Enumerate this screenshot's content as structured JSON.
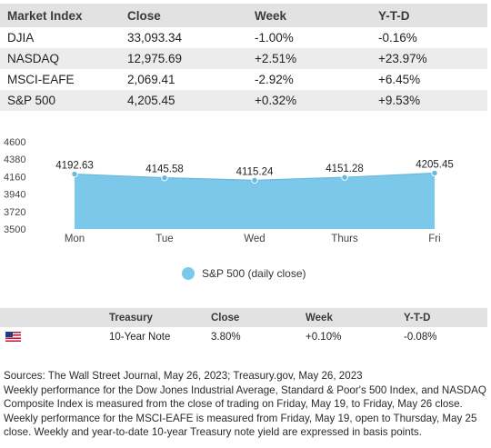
{
  "market_table": {
    "headers": [
      "Market Index",
      "Close",
      "Week",
      "Y-T-D"
    ],
    "rows": [
      [
        "DJIA",
        "33,093.34",
        "-1.00%",
        "-0.16%"
      ],
      [
        "NASDAQ",
        "12,975.69",
        "+2.51%",
        "+23.97%"
      ],
      [
        "MSCI-EAFE",
        "2,069.41",
        "-2.92%",
        "+6.45%"
      ],
      [
        "S&P 500",
        "4,205.45",
        "+0.32%",
        "+9.53%"
      ]
    ]
  },
  "chart_data": {
    "type": "area",
    "categories": [
      "Mon",
      "Tue",
      "Wed",
      "Thurs",
      "Fri"
    ],
    "series": [
      {
        "name": "S&P 500 (daily close)",
        "values": [
          4192.63,
          4145.58,
          4115.24,
          4151.28,
          4205.45
        ]
      }
    ],
    "data_labels": [
      "4192.63",
      "4145.58",
      "4115.24",
      "4151.28",
      "4205.45"
    ],
    "ylim": [
      3500,
      4600
    ],
    "yticks": [
      4600,
      4380,
      4160,
      3940,
      3720,
      3500
    ],
    "grid": false,
    "legend_position": "bottom",
    "colors": {
      "fill": "#7cc8ea",
      "line": "#6ab8dc",
      "marker": "#6ab8dc"
    }
  },
  "legend": {
    "label": "S&P 500 (daily close)"
  },
  "treasury_table": {
    "headers": [
      "",
      "Treasury",
      "Close",
      "Week",
      "Y-T-D"
    ],
    "row": {
      "flag_icon": "us-flag-icon",
      "name": "10-Year Note",
      "close": "3.80%",
      "week": "+0.10%",
      "ytd": "-0.08%"
    }
  },
  "notes": {
    "sources": "Sources: The Wall Street Journal, May 26, 2023; Treasury.gov, May 26, 2023",
    "body": "Weekly performance for the Dow Jones Industrial Average, Standard & Poor's 500 Index, and NASDAQ Composite Index is measured from the close of trading on Friday, May 19, to Friday, May 26 close. Weekly performance for the MSCI-EAFE is measured from Friday, May 19, open to Thursday, May 25 close. Weekly and year-to-date 10-year Treasury note yield are expressed in basis points."
  }
}
